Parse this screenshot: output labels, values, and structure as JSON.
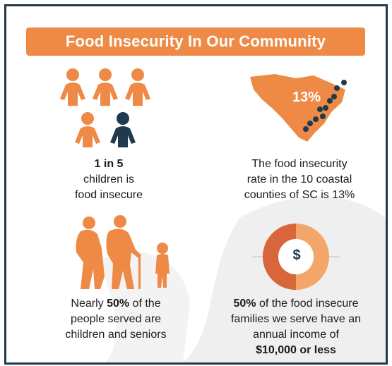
{
  "title": "Food Insecurity In Our Community",
  "stat_children": {
    "bold": "1 in 5",
    "line1": "children is",
    "line2": "food insecure"
  },
  "stat_coastal": {
    "map_label": "13%",
    "line1": "The food insecurity",
    "line2": "rate in the 10 coastal",
    "line3": "counties of SC is 13%"
  },
  "stat_seniors": {
    "line1_pre": "Nearly ",
    "line1_bold": "50%",
    "line1_post": " of the",
    "line2": "people served are",
    "line3": "children and seniors"
  },
  "stat_income": {
    "icon_symbol": "$",
    "line1_bold": "50%",
    "line1_post": " of the food insecure",
    "line2": "families we serve have an",
    "line3": "annual income of",
    "line4_bold": "$10,000 or less",
    "donut_percent": 50
  },
  "colors": {
    "orange": "#ee8a45",
    "orange_dark": "#d9653a",
    "navy": "#1f3a4d",
    "bg_shape": "#efefef"
  },
  "icons": [
    "people-group-icon",
    "south-carolina-map-icon",
    "elderly-couple-with-child-icon",
    "donut-dollar-icon"
  ]
}
